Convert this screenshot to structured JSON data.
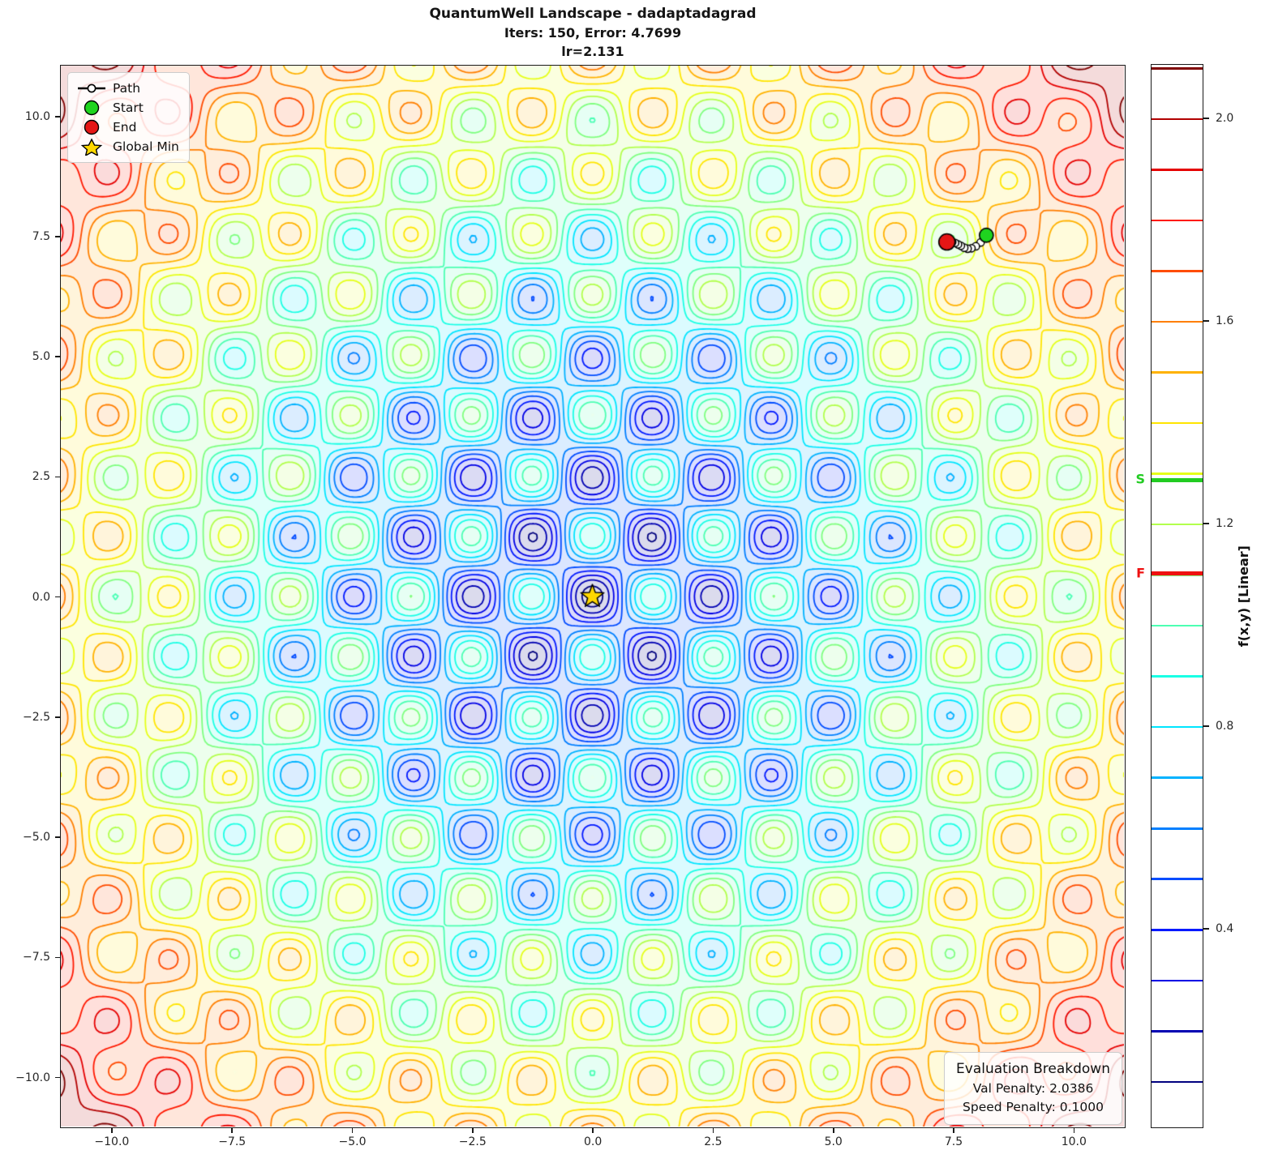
{
  "header": {
    "title": "QuantumWell Landscape - dadaptadagrad",
    "subtitle": "Iters: 150, Error: 4.7699",
    "lr_line": "lr=2.131"
  },
  "legend": {
    "items": [
      {
        "label": "Path",
        "icon": "path-line-marker-icon"
      },
      {
        "label": "Start",
        "icon": "start-circle-icon"
      },
      {
        "label": "End",
        "icon": "end-circle-icon"
      },
      {
        "label": "Global Min",
        "icon": "global-min-star-icon"
      }
    ]
  },
  "eval_box": {
    "title": "Evaluation Breakdown",
    "rows": [
      "Val Penalty: 2.0386",
      "Speed Penalty: 0.1000"
    ]
  },
  "colorbar": {
    "label": "f(x,y) [Linear]",
    "value_range": [
      0.007,
      2.107
    ],
    "tick_values": [
      0.4,
      0.8,
      1.2,
      1.6,
      2.0
    ],
    "tick_labels": [
      "0.4",
      "0.8",
      "1.2",
      "1.6",
      "2.0"
    ],
    "s_marker": {
      "label": "S",
      "value": 1.288,
      "color": "#22cc22"
    },
    "f_marker": {
      "label": "F",
      "value": 1.103,
      "color": "#ee1111"
    }
  },
  "chart_data": {
    "type": "contour",
    "title": "QuantumWell Landscape - dadaptadagrad",
    "xlabel": "",
    "ylabel": "",
    "xlim": [
      -11.05,
      11.05
    ],
    "ylim": [
      -11.03,
      11.05
    ],
    "xticks": [
      -10.0,
      -7.5,
      -5.0,
      -2.5,
      0.0,
      2.5,
      5.0,
      7.5,
      10.0
    ],
    "xtick_labels": [
      "−10.0",
      "−7.5",
      "−5.0",
      "−2.5",
      "0.0",
      "2.5",
      "5.0",
      "7.5",
      "10.0"
    ],
    "yticks": [
      10.0,
      7.5,
      5.0,
      2.5,
      0.0,
      -2.5,
      -5.0,
      -7.5,
      -10.0
    ],
    "ytick_labels": [
      "10.0",
      "7.5",
      "5.0",
      "2.5",
      "0.0",
      "−2.5",
      "−5.0",
      "−7.5",
      "−10.0"
    ],
    "levels": {
      "min": 0.1,
      "max": 2.1,
      "step": 0.1
    },
    "level_color_norm": [
      0.1,
      2.1
    ],
    "colormap": "jet",
    "fill_alpha": 0.14,
    "line_width": 1.8,
    "surface": {
      "formula": "f(x,y) = 0.5 + 1.6*(r/15.6)^1.6 - 0.47*exp(-r^2/196)*cos(pi*x/1.25)*cos(pi*y/1.25)",
      "base_offset": 0.5,
      "base_scale": 1.6,
      "base_r0": 15.6,
      "base_pow": 1.6,
      "osc_amp": 0.47,
      "osc_sigma2": 196,
      "well_spacing": 1.25
    },
    "global_min": {
      "x": 0.0,
      "y": 0.0,
      "marker": "star",
      "color": "#FFD700"
    },
    "path": {
      "start": {
        "x": 8.19,
        "y": 7.52,
        "color": "#1fd41f"
      },
      "end": {
        "x": 7.37,
        "y": 7.38,
        "color": "#e51616"
      },
      "points": [
        [
          8.19,
          7.52
        ],
        [
          8.07,
          7.37
        ],
        [
          7.97,
          7.29
        ],
        [
          7.88,
          7.25
        ],
        [
          7.8,
          7.24
        ],
        [
          7.73,
          7.26
        ],
        [
          7.66,
          7.3
        ],
        [
          7.6,
          7.33
        ],
        [
          7.54,
          7.36
        ],
        [
          7.48,
          7.38
        ],
        [
          7.42,
          7.39
        ],
        [
          7.37,
          7.38
        ]
      ]
    }
  }
}
